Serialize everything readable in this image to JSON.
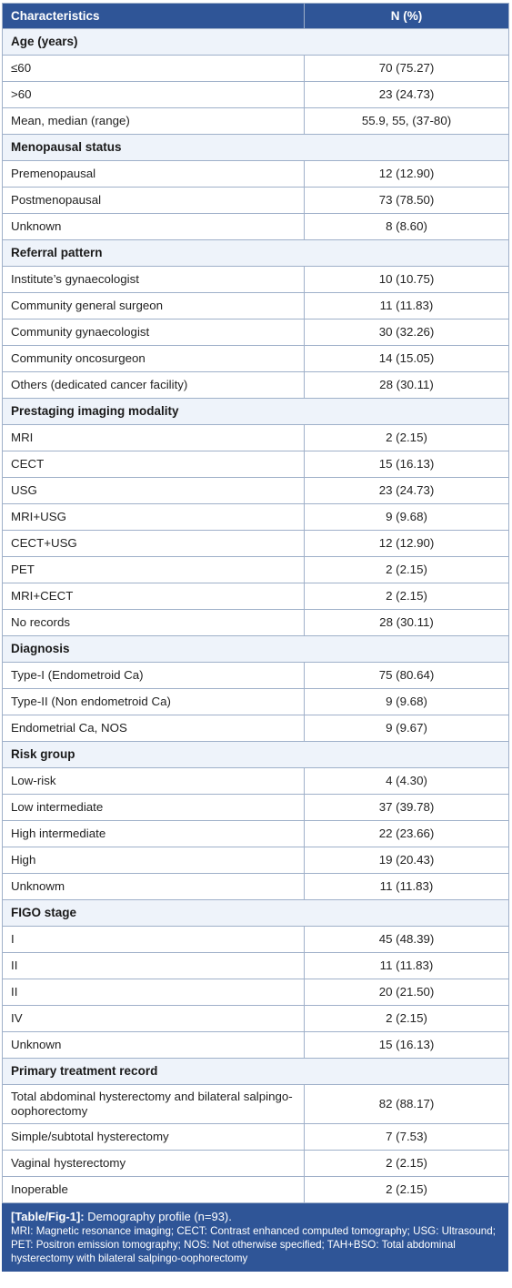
{
  "header": {
    "col1": "Characteristics",
    "col2": "N (%)"
  },
  "sections": [
    {
      "title": "Age (years)",
      "rows": [
        {
          "label": "≤60",
          "value": "70 (75.27)"
        },
        {
          "label": ">60",
          "value": "23 (24.73)"
        },
        {
          "label": "Mean, median (range)",
          "value": "55.9, 55, (37-80)"
        }
      ]
    },
    {
      "title": "Menopausal status",
      "rows": [
        {
          "label": "Premenopausal",
          "value": "12 (12.90)"
        },
        {
          "label": "Postmenopausal",
          "value": "73 (78.50)"
        },
        {
          "label": "Unknown",
          "value": "8 (8.60)"
        }
      ]
    },
    {
      "title": "Referral pattern",
      "rows": [
        {
          "label": "Institute’s gynaecologist",
          "value": "10 (10.75)"
        },
        {
          "label": "Community general surgeon",
          "value": "11 (11.83)"
        },
        {
          "label": "Community gynaecologist",
          "value": "30 (32.26)"
        },
        {
          "label": "Community oncosurgeon",
          "value": "14 (15.05)"
        },
        {
          "label": "Others (dedicated cancer facility)",
          "value": "28 (30.11)"
        }
      ]
    },
    {
      "title": "Prestaging imaging modality",
      "rows": [
        {
          "label": "MRI",
          "value": "2 (2.15)"
        },
        {
          "label": "CECT",
          "value": "15 (16.13)"
        },
        {
          "label": "USG",
          "value": "23 (24.73)"
        },
        {
          "label": "MRI+USG",
          "value": "9 (9.68)"
        },
        {
          "label": "CECT+USG",
          "value": "12 (12.90)"
        },
        {
          "label": "PET",
          "value": "2 (2.15)"
        },
        {
          "label": "MRI+CECT",
          "value": "2 (2.15)"
        },
        {
          "label": "No records",
          "value": "28 (30.11)"
        }
      ]
    },
    {
      "title": "Diagnosis",
      "rows": [
        {
          "label": "Type-I (Endometroid Ca)",
          "value": "75 (80.64)"
        },
        {
          "label": "Type-II (Non endometroid Ca)",
          "value": "9 (9.68)"
        },
        {
          "label": "Endometrial Ca, NOS",
          "value": "9 (9.67)"
        }
      ]
    },
    {
      "title": "Risk group",
      "rows": [
        {
          "label": "Low-risk",
          "value": "4 (4.30)"
        },
        {
          "label": "Low intermediate",
          "value": "37 (39.78)"
        },
        {
          "label": "High intermediate",
          "value": "22 (23.66)"
        },
        {
          "label": "High",
          "value": "19 (20.43)"
        },
        {
          "label": "Unknowm",
          "value": "11 (11.83)"
        }
      ]
    },
    {
      "title": "FIGO stage",
      "rows": [
        {
          "label": "I",
          "value": "45 (48.39)"
        },
        {
          "label": "II",
          "value": "11 (11.83)"
        },
        {
          "label": "II",
          "value": "20 (21.50)"
        },
        {
          "label": "IV",
          "value": "2 (2.15)"
        },
        {
          "label": "Unknown",
          "value": "15 (16.13)"
        }
      ]
    },
    {
      "title": "Primary treatment record",
      "rows": [
        {
          "label": "Total abdominal hysterectomy and bilateral salpingo-oophorectomy",
          "value": "82 (88.17)",
          "tall": true
        },
        {
          "label": "Simple/subtotal hysterectomy",
          "value": "7 (7.53)"
        },
        {
          "label": "Vaginal hysterectomy",
          "value": "2 (2.15)"
        },
        {
          "label": "Inoperable",
          "value": "2 (2.15)"
        }
      ]
    }
  ],
  "caption": {
    "label": "[Table/Fig-1]:",
    "title": "Demography profile (n=93).",
    "notes": "MRI: Magnetic resonance imaging; CECT: Contrast enhanced computed tomography; USG: Ultrasound; PET: Positron emission tomography; NOS: Not otherwise specified; TAH+BSO: Total abdominal hysterectomy with bilateral salpingo-oophorectomy"
  },
  "colors": {
    "header_bg": "#2f5597",
    "section_bg": "#eef3fa",
    "border": "#9fb0c9"
  }
}
